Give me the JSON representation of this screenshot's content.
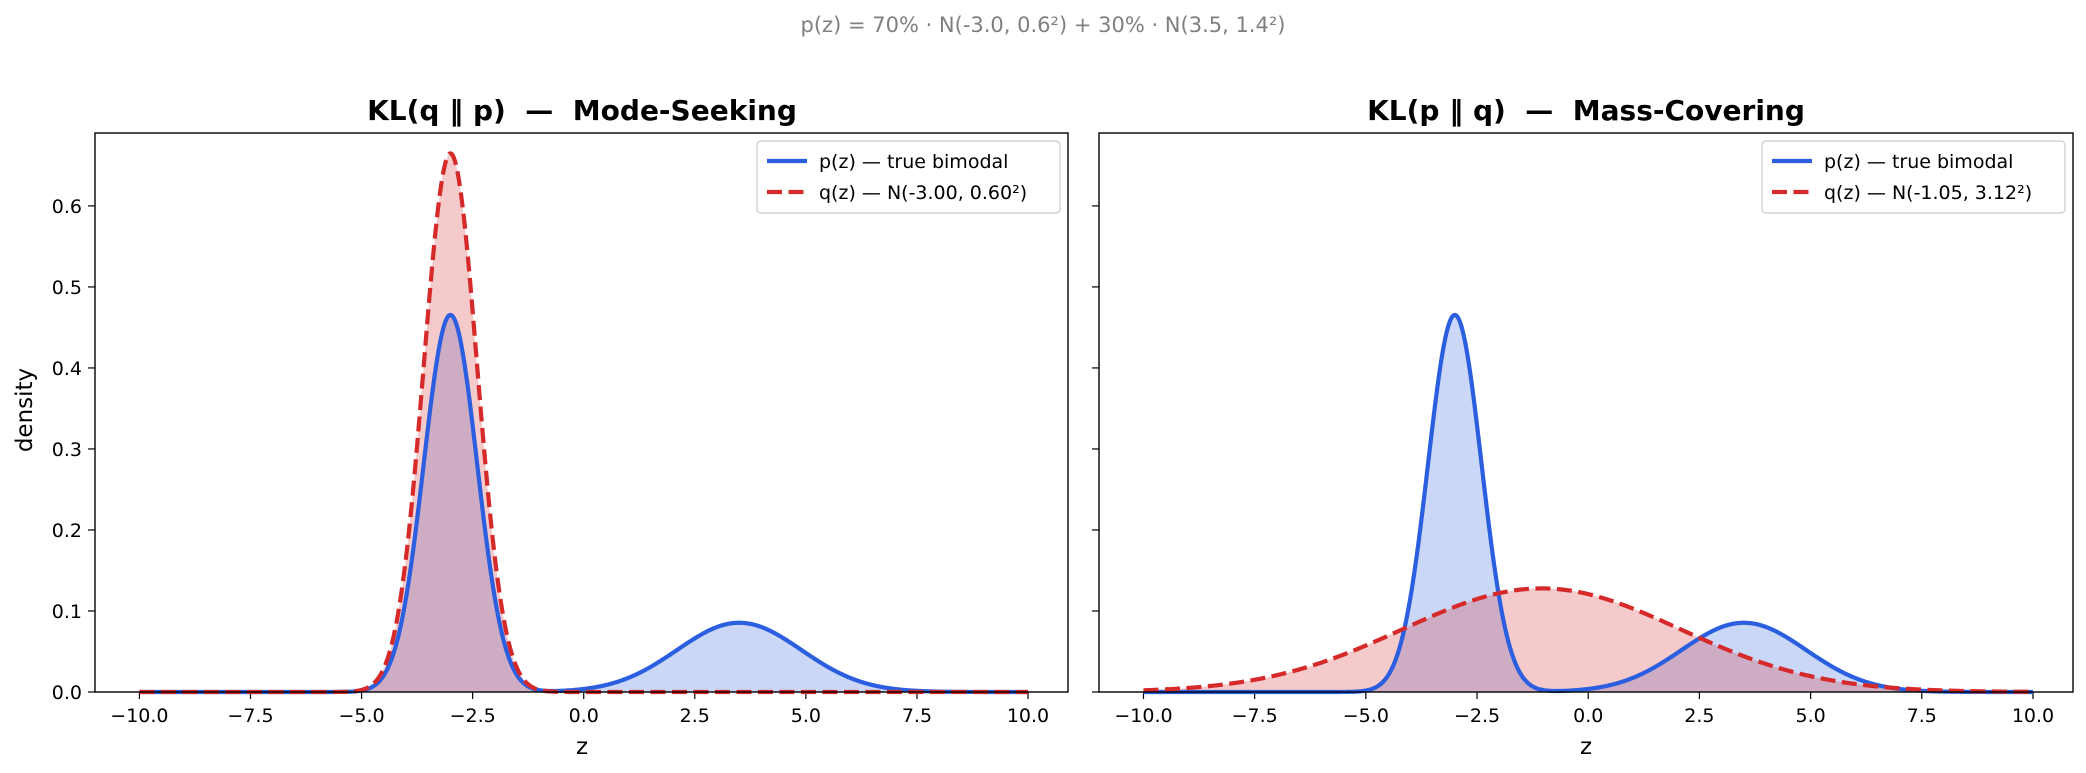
{
  "suptitle": "p(z) = 70% · N(-3.0, 0.6²) + 30% · N(3.5, 1.4²)",
  "colors": {
    "p": "#2b5fe0",
    "q": "#d62a2a",
    "p_fill": "#c7d4f6",
    "q_fill": "#f4c4c4"
  },
  "chart_data": [
    {
      "type": "line",
      "title": "KL(q ‖ p)  —  Mode-Seeking",
      "xlabel": "z",
      "ylabel": "density",
      "xlim": [
        -11,
        10.9
      ],
      "ylim": [
        0,
        0.69
      ],
      "xticks": [
        "−10.0",
        "−7.5",
        "−5.0",
        "−2.5",
        "0.0",
        "2.5",
        "5.0",
        "7.5",
        "10.0"
      ],
      "yticks": [
        "0.0",
        "0.1",
        "0.2",
        "0.3",
        "0.4",
        "0.5",
        "0.6"
      ],
      "x_range": [
        -10,
        10
      ],
      "legend_position": "upper right",
      "series": [
        {
          "name": "p(z) — true bimodal",
          "style": "solid",
          "color": "#2b5fe0",
          "fill": true,
          "mixture": [
            {
              "weight": 0.7,
              "mean": -3.0,
              "std": 0.6
            },
            {
              "weight": 0.3,
              "mean": 3.5,
              "std": 1.4
            }
          ]
        },
        {
          "name": "q(z) — N(-3.00, 0.60²)",
          "style": "dashed",
          "color": "#d62a2a",
          "fill": true,
          "mixture": [
            {
              "weight": 1.0,
              "mean": -3.0,
              "std": 0.6
            }
          ]
        }
      ]
    },
    {
      "type": "line",
      "title": "KL(p ‖ q)  —  Mass-Covering",
      "xlabel": "z",
      "ylabel": "",
      "xlim": [
        -11,
        10.9
      ],
      "ylim": [
        0,
        0.69
      ],
      "xticks": [
        "−10.0",
        "−7.5",
        "−5.0",
        "−2.5",
        "0.0",
        "2.5",
        "5.0",
        "7.5",
        "10.0"
      ],
      "yticks": [],
      "x_range": [
        -10,
        10
      ],
      "legend_position": "upper right",
      "series": [
        {
          "name": "p(z) — true bimodal",
          "style": "solid",
          "color": "#2b5fe0",
          "fill": true,
          "mixture": [
            {
              "weight": 0.7,
              "mean": -3.0,
              "std": 0.6
            },
            {
              "weight": 0.3,
              "mean": 3.5,
              "std": 1.4
            }
          ]
        },
        {
          "name": "q(z) — N(-1.05, 3.12²)",
          "style": "dashed",
          "color": "#d62a2a",
          "fill": true,
          "mixture": [
            {
              "weight": 1.0,
              "mean": -1.05,
              "std": 3.12
            }
          ]
        }
      ]
    }
  ]
}
